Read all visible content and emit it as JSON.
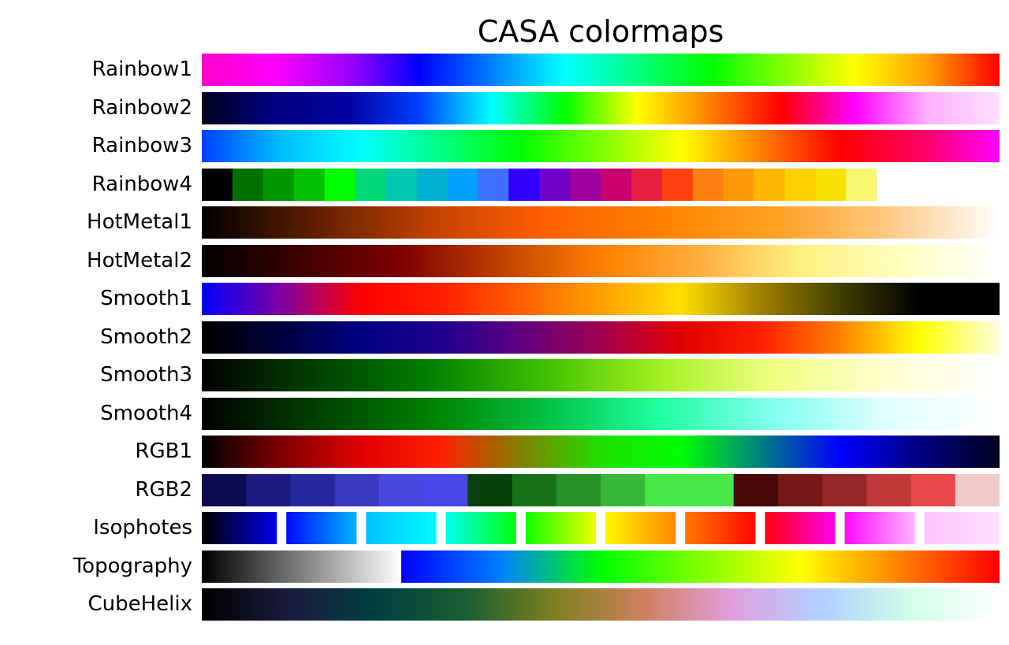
{
  "chart_data": {
    "type": "heatmap",
    "title": "CASA colormaps",
    "colormaps": [
      {
        "name": "Rainbow1",
        "stops": [
          "#ff00cc",
          "#ff00ff",
          "#a000ff",
          "#0000ff",
          "#0080ff",
          "#00ffff",
          "#00ff80",
          "#00ff00",
          "#80ff00",
          "#ffff00",
          "#ffa000",
          "#ff0000"
        ]
      },
      {
        "name": "Rainbow2",
        "stops": [
          "#000020",
          "#000080",
          "#0000a0",
          "#0040ff",
          "#00ffff",
          "#00ff00",
          "#ffff00",
          "#ff8000",
          "#ff0000",
          "#ff00ff",
          "#ffb0ff",
          "#ffe0ff"
        ]
      },
      {
        "name": "Rainbow3",
        "stops": [
          "#0040ff",
          "#00c0ff",
          "#00ffff",
          "#00ff80",
          "#00ff00",
          "#80ff00",
          "#ffff00",
          "#ff8000",
          "#ff0000",
          "#ff0060",
          "#ff00ff"
        ]
      },
      {
        "name": "Rainbow4",
        "segments": [
          "#000000",
          "#007000",
          "#009800",
          "#00c000",
          "#00ff00",
          "#00d878",
          "#00c8b0",
          "#00b0d0",
          "#00a0ff",
          "#4070ff",
          "#3000ff",
          "#7000c8",
          "#a000a0",
          "#c80070",
          "#e82040",
          "#ff4010",
          "#ff8010",
          "#ff9808",
          "#ffb800",
          "#ffd000",
          "#f8e000",
          "#f8f870",
          "#ffffff",
          "#ffffff",
          "#ffffff",
          "#ffffff"
        ]
      },
      {
        "name": "HotMetal1",
        "stops": [
          "#000000",
          "#602000",
          "#c04000",
          "#ff6000",
          "#ff8000",
          "#ffa020",
          "#ffc880",
          "#ffffff"
        ]
      },
      {
        "name": "HotMetal2",
        "stops": [
          "#000000",
          "#400000",
          "#800000",
          "#c04000",
          "#ff8000",
          "#ffb040",
          "#fff080",
          "#ffffc0",
          "#ffffff"
        ]
      },
      {
        "name": "Smooth1",
        "stops": [
          "#0000ff",
          "#8000a0",
          "#ff0000",
          "#ff2000",
          "#ff6000",
          "#ffa000",
          "#ffe000",
          "#a08000",
          "#404000",
          "#000000",
          "#000000"
        ]
      },
      {
        "name": "Smooth2",
        "stops": [
          "#000000",
          "#000040",
          "#000080",
          "#200090",
          "#600080",
          "#a00050",
          "#e00000",
          "#ff2000",
          "#ff8000",
          "#ffff00",
          "#ffffe0"
        ]
      },
      {
        "name": "Smooth3",
        "stops": [
          "#000000",
          "#004000",
          "#008000",
          "#40c000",
          "#a0f020",
          "#f0ff80",
          "#ffffd0",
          "#ffffff"
        ]
      },
      {
        "name": "Smooth4",
        "stops": [
          "#000000",
          "#004000",
          "#008000",
          "#00c040",
          "#20ffa0",
          "#80fff0",
          "#e0ffff",
          "#ffffff"
        ]
      },
      {
        "name": "RGB1",
        "stops": [
          "#000000",
          "#800000",
          "#e00000",
          "#ff2000",
          "#808000",
          "#20e000",
          "#00ff00",
          "#008080",
          "#0000ff",
          "#000080",
          "#000020"
        ]
      },
      {
        "name": "RGB2",
        "segments": [
          "#0a0a50",
          "#1a1a80",
          "#2828a0",
          "#3838c0",
          "#4848e0",
          "#4848e8",
          "#084008",
          "#187018",
          "#289028",
          "#38b838",
          "#48e848",
          "#48e848",
          "#480808",
          "#781818",
          "#982828",
          "#c03838",
          "#e84848",
          "#f0c8c8"
        ]
      },
      {
        "name": "Isophotes",
        "stops": [
          "#000000",
          "#0000ff",
          "#00c0ff",
          "#00ffff",
          "#00ff00",
          "#ffff00",
          "#ff8000",
          "#ff0000",
          "#ff00ff",
          "#ffc0ff",
          "#ffe0ff"
        ]
      },
      {
        "name": "Topography",
        "split": 0.25,
        "stops_left": [
          "#000000",
          "#808080",
          "#ffffff"
        ],
        "stops_right": [
          "#0000ff",
          "#0080ff",
          "#00ff00",
          "#80ff00",
          "#ffff00",
          "#ff8000",
          "#ff0000"
        ]
      },
      {
        "name": "CubeHelix",
        "stops": [
          "#000000",
          "#1a1a40",
          "#004040",
          "#1a6030",
          "#808020",
          "#d08060",
          "#e0a0e0",
          "#b0d0ff",
          "#d0ffe8",
          "#ffffff"
        ]
      }
    ]
  }
}
